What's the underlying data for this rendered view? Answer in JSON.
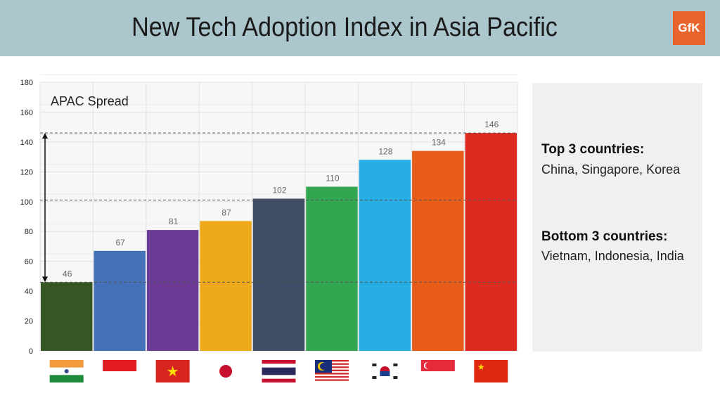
{
  "header": {
    "title": "New Tech Adoption Index in Asia Pacific",
    "logo": "GfK",
    "background": "#abc6cd"
  },
  "panel": {
    "top_heading": "Top 3 countries:",
    "top_text": "China, Singapore, Korea",
    "bottom_heading": "Bottom 3 countries:",
    "bottom_text": "Vietnam, Indonesia, India"
  },
  "chart_data": {
    "type": "bar",
    "title": "",
    "annotation": "APAC Spread",
    "categories": [
      "India",
      "Indonesia",
      "Vietnam",
      "Japan",
      "Thailand",
      "Malaysia",
      "Korea",
      "Singapore",
      "China"
    ],
    "category_display": "flags",
    "values": [
      46,
      67,
      81,
      87,
      102,
      110,
      128,
      134,
      146
    ],
    "colors": [
      "#365723",
      "#4472b8",
      "#6a3a94",
      "#eeaa1a",
      "#3f4e66",
      "#33a651",
      "#27aee4",
      "#e65c18",
      "#dd2b22"
    ],
    "ylim": [
      0,
      180
    ],
    "yticks": [
      0,
      20,
      40,
      60,
      80,
      100,
      120,
      140,
      160,
      180
    ],
    "reference_lines": [
      146,
      101,
      46
    ],
    "grid": true,
    "xlabel": "",
    "ylabel": ""
  }
}
